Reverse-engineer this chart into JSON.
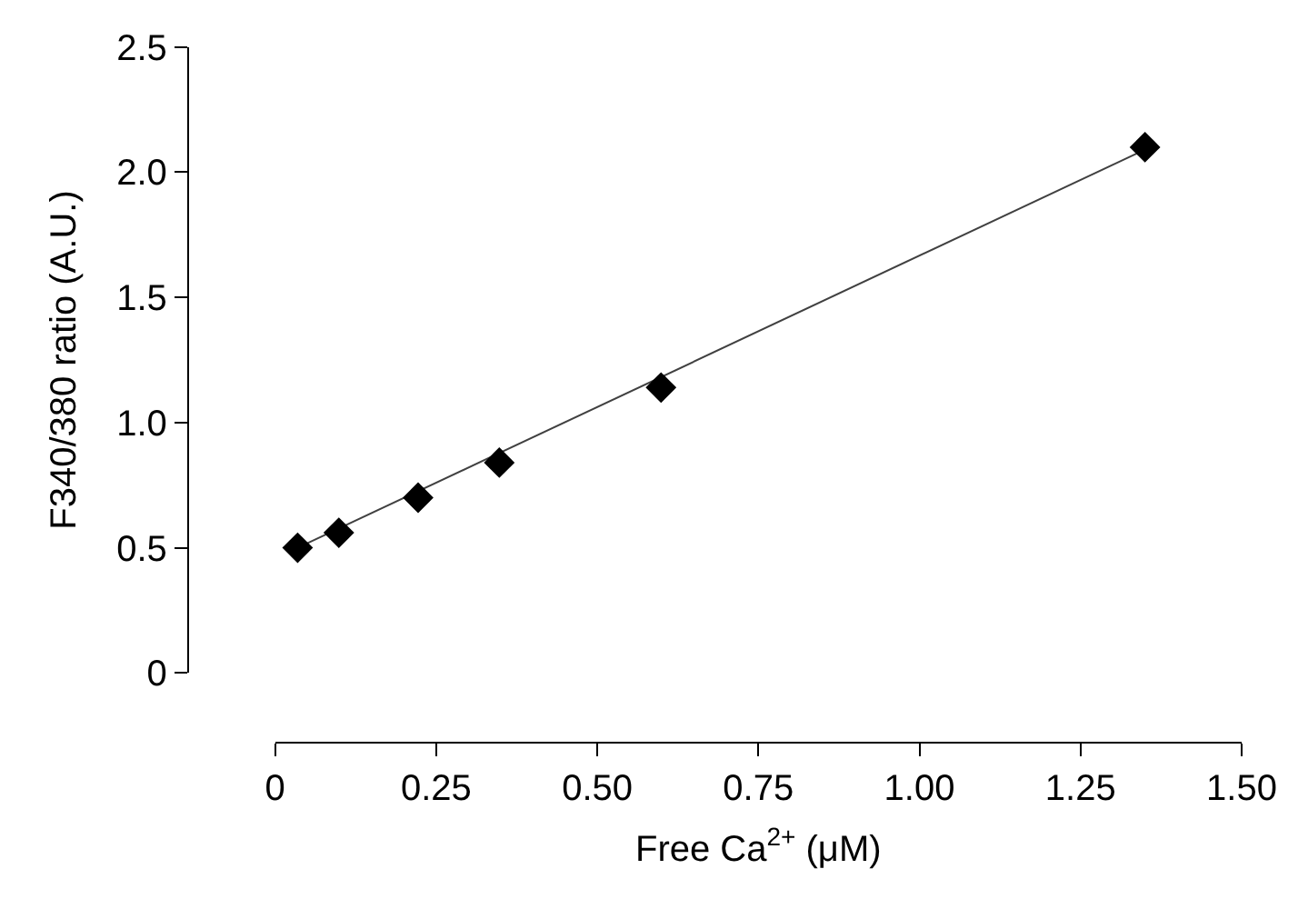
{
  "chart_data": {
    "type": "scatter",
    "xlabel": "Free Ca$^{2+}$ (μM)",
    "ylabel": "F340/380 ratio (A.U.)",
    "xlim": [
      0,
      1.5
    ],
    "xticks": [
      0,
      {
        "value": 0.25,
        "label": "0.25"
      },
      {
        "value": 0.5,
        "label": "0.50"
      },
      {
        "value": 0.75,
        "label": "0.75"
      },
      {
        "value": 1,
        "label": "1.00"
      },
      {
        "value": 1.25,
        "label": "1.25"
      },
      {
        "value": 1.5,
        "label": "1.50"
      }
    ],
    "ylim": [
      0,
      2.5
    ],
    "yticks": [
      0,
      0.5,
      {
        "value": 1,
        "label": "1.0"
      },
      1.5,
      {
        "value": 2,
        "label": "2.0"
      },
      2.5
    ],
    "marker": "diamond",
    "series": [
      {
        "type": "line",
        "color": "#404040",
        "x": [
          0.035,
          1.35
        ],
        "values": [
          0.5,
          2.09
        ],
        "marker": "none",
        "line_style": "solid"
      },
      {
        "color": "#000000",
        "x": [
          0.035,
          0.099,
          0.222,
          0.348,
          0.599,
          1.35
        ],
        "values": [
          0.5,
          0.56,
          0.7,
          0.84,
          1.14,
          2.1
        ]
      }
    ]
  }
}
